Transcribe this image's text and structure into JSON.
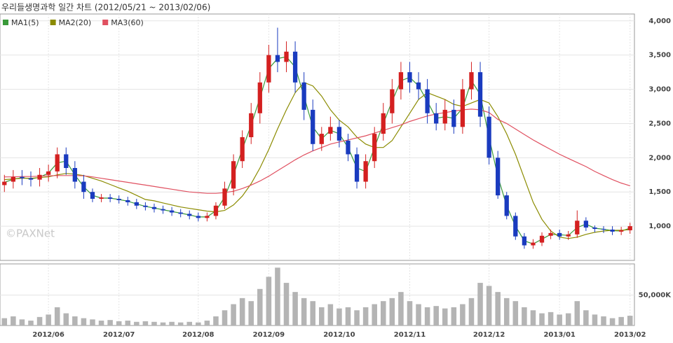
{
  "chart_data": {
    "type": "candlestick",
    "title": "우리들생명과학 일간 차트 (2012/05/21 ~ 2013/02/06)",
    "watermark": "©PAXNet",
    "categories": [
      null,
      null,
      null,
      null,
      null,
      null,
      null,
      null,
      null,
      null,
      null,
      null,
      null,
      null,
      null,
      null,
      null,
      null,
      null,
      null,
      null,
      null,
      null,
      null,
      null,
      null,
      null,
      null,
      null,
      null,
      null,
      null,
      null,
      null,
      null,
      null,
      null,
      null,
      null,
      null,
      null,
      null,
      null,
      null,
      null,
      null,
      null,
      null,
      null,
      null,
      null,
      null,
      null,
      null,
      null,
      null,
      null,
      null,
      null,
      null,
      null,
      null,
      null,
      null,
      null,
      null,
      null,
      null,
      null,
      null,
      null,
      null
    ],
    "open": [
      1600,
      1650,
      1720,
      1700,
      1680,
      1750,
      1800,
      2050,
      1850,
      1650,
      1500,
      1400,
      1420,
      1400,
      1380,
      1350,
      1300,
      1280,
      1250,
      1230,
      1200,
      1180,
      1150,
      1120,
      1150,
      1300,
      1550,
      1950,
      2300,
      2650,
      3100,
      3500,
      3400,
      3550,
      3100,
      2700,
      2200,
      2350,
      2450,
      2250,
      2050,
      1650,
      1950,
      2350,
      2650,
      3000,
      3250,
      3100,
      3000,
      2650,
      2500,
      2700,
      2450,
      3000,
      3250,
      2600,
      2000,
      1450,
      1150,
      850,
      720,
      760,
      860,
      900,
      850,
      880,
      1080,
      980,
      960,
      950,
      920,
      940
    ],
    "high": [
      1750,
      1820,
      1820,
      1800,
      1850,
      1900,
      2150,
      2150,
      1950,
      1750,
      1550,
      1470,
      1470,
      1450,
      1430,
      1400,
      1350,
      1330,
      1300,
      1280,
      1250,
      1230,
      1200,
      1200,
      1350,
      1650,
      2050,
      2400,
      2800,
      3250,
      3650,
      3900,
      3700,
      3700,
      3250,
      2850,
      2450,
      2600,
      2550,
      2350,
      2150,
      2050,
      2450,
      2800,
      3150,
      3400,
      3400,
      3250,
      3150,
      2800,
      2850,
      2850,
      3150,
      3400,
      3400,
      2750,
      2100,
      1500,
      1200,
      900,
      810,
      910,
      950,
      950,
      930,
      1230,
      1130,
      1010,
      1000,
      1000,
      990,
      1050
    ],
    "low": [
      1500,
      1550,
      1600,
      1580,
      1580,
      1650,
      1700,
      1750,
      1550,
      1400,
      1350,
      1350,
      1350,
      1330,
      1300,
      1250,
      1230,
      1200,
      1180,
      1150,
      1130,
      1100,
      1070,
      1070,
      1100,
      1250,
      1450,
      1850,
      2200,
      2500,
      2950,
      3250,
      3250,
      2950,
      2550,
      2100,
      2100,
      2250,
      2150,
      1950,
      1550,
      1550,
      1850,
      2250,
      2500,
      2850,
      2950,
      2850,
      2500,
      2400,
      2400,
      2350,
      2350,
      2850,
      2450,
      1900,
      1400,
      1100,
      800,
      670,
      670,
      710,
      810,
      800,
      800,
      830,
      930,
      910,
      900,
      870,
      870,
      890
    ],
    "close": [
      1650,
      1720,
      1700,
      1680,
      1750,
      1800,
      2050,
      1850,
      1650,
      1500,
      1400,
      1420,
      1400,
      1380,
      1350,
      1300,
      1280,
      1250,
      1230,
      1200,
      1180,
      1150,
      1120,
      1150,
      1300,
      1550,
      1950,
      2300,
      2650,
      3100,
      3500,
      3400,
      3550,
      3100,
      2700,
      2200,
      2350,
      2450,
      2250,
      2050,
      1650,
      1950,
      2350,
      2650,
      3000,
      3250,
      3100,
      3000,
      2650,
      2500,
      2700,
      2450,
      3000,
      3250,
      2600,
      2000,
      1450,
      1150,
      850,
      720,
      760,
      860,
      900,
      850,
      880,
      1080,
      980,
      960,
      950,
      920,
      940,
      1000
    ],
    "volume": [
      12000,
      15000,
      10000,
      8000,
      14000,
      18000,
      30000,
      20000,
      15000,
      12000,
      10000,
      8000,
      9000,
      7000,
      8000,
      6000,
      7000,
      6000,
      5000,
      6000,
      5000,
      6000,
      5000,
      8000,
      15000,
      25000,
      35000,
      45000,
      40000,
      60000,
      80000,
      95000,
      70000,
      55000,
      45000,
      40000,
      30000,
      35000,
      28000,
      30000,
      25000,
      30000,
      35000,
      40000,
      45000,
      55000,
      40000,
      35000,
      30000,
      32000,
      28000,
      30000,
      35000,
      45000,
      70000,
      65000,
      55000,
      45000,
      40000,
      30000,
      25000,
      20000,
      22000,
      18000,
      20000,
      40000,
      25000,
      18000,
      15000,
      12000,
      14000,
      16000
    ],
    "up_color": "#d42020",
    "down_color": "#1a3bbf",
    "volume_color": "#b4b4b4",
    "series": [
      {
        "name": "MA1(5)",
        "color": "#3a9a3a",
        "values": [
          1640,
          1685,
          1710,
          1690,
          1715,
          1775,
          1925,
          1950,
          1750,
          1575,
          1450,
          1410,
          1410,
          1390,
          1365,
          1325,
          1290,
          1265,
          1240,
          1215,
          1190,
          1165,
          1135,
          1135,
          1225,
          1425,
          1750,
          2125,
          2475,
          2875,
          3300,
          3450,
          3475,
          3325,
          2900,
          2450,
          2275,
          2400,
          2350,
          2150,
          1850,
          1800,
          2150,
          2500,
          2825,
          3125,
          3175,
          3050,
          2825,
          2575,
          2600,
          2575,
          2725,
          3125,
          2925,
          2300,
          1725,
          1300,
          1000,
          785,
          740,
          810,
          880,
          875,
          865,
          980,
          1030,
          970,
          955,
          935,
          930,
          970
        ]
      },
      {
        "name": "MA2(20)",
        "color": "#8b8b00",
        "values": [
          1680,
          1690,
          1700,
          1700,
          1710,
          1720,
          1750,
          1770,
          1760,
          1740,
          1700,
          1660,
          1610,
          1560,
          1510,
          1450,
          1390,
          1370,
          1340,
          1310,
          1280,
          1260,
          1240,
          1220,
          1210,
          1230,
          1310,
          1440,
          1620,
          1850,
          2120,
          2420,
          2700,
          2950,
          3100,
          3050,
          2900,
          2700,
          2550,
          2450,
          2300,
          2200,
          2150,
          2150,
          2250,
          2450,
          2650,
          2850,
          2950,
          2900,
          2850,
          2780,
          2750,
          2800,
          2850,
          2800,
          2600,
          2350,
          2050,
          1700,
          1350,
          1100,
          930,
          840,
          820,
          840,
          880,
          910,
          930,
          940,
          940,
          950
        ]
      },
      {
        "name": "MA3(60)",
        "color": "#e05060",
        "values": [
          1720,
          1720,
          1725,
          1725,
          1730,
          1735,
          1740,
          1740,
          1740,
          1735,
          1720,
          1700,
          1680,
          1660,
          1640,
          1620,
          1600,
          1580,
          1560,
          1540,
          1520,
          1500,
          1490,
          1480,
          1480,
          1490,
          1510,
          1550,
          1600,
          1660,
          1730,
          1810,
          1890,
          1970,
          2040,
          2100,
          2150,
          2200,
          2230,
          2260,
          2290,
          2320,
          2360,
          2400,
          2440,
          2480,
          2530,
          2570,
          2610,
          2640,
          2660,
          2680,
          2700,
          2710,
          2700,
          2660,
          2560,
          2500,
          2420,
          2340,
          2260,
          2190,
          2120,
          2050,
          1990,
          1930,
          1870,
          1800,
          1740,
          1680,
          1630,
          1590
        ]
      }
    ],
    "ylim": [
      500,
      4100
    ],
    "yticks": [
      {
        "value": 1000,
        "label": "1,000"
      },
      {
        "value": 1500,
        "label": "1,500"
      },
      {
        "value": 2000,
        "label": "2,000"
      },
      {
        "value": 2500,
        "label": "2,500"
      },
      {
        "value": 3000,
        "label": "3,000"
      },
      {
        "value": 3500,
        "label": "3,500"
      },
      {
        "value": 4000,
        "label": "4,000"
      }
    ],
    "y2lim": [
      0,
      100000
    ],
    "y2ticks": [
      {
        "value": 50000,
        "label": "50,000K"
      }
    ],
    "xticks": [
      {
        "value": 5,
        "label": "2012/06"
      },
      {
        "value": 13,
        "label": "2012/07"
      },
      {
        "value": 22,
        "label": "2012/08"
      },
      {
        "value": 30,
        "label": "2012/09"
      },
      {
        "value": 38,
        "label": "2012/10"
      },
      {
        "value": 46,
        "label": "2012/11"
      },
      {
        "value": 55,
        "label": "2012/12"
      },
      {
        "value": 63,
        "label": "2013/01"
      },
      {
        "value": 71,
        "label": "2013/02"
      }
    ],
    "grid": true
  }
}
